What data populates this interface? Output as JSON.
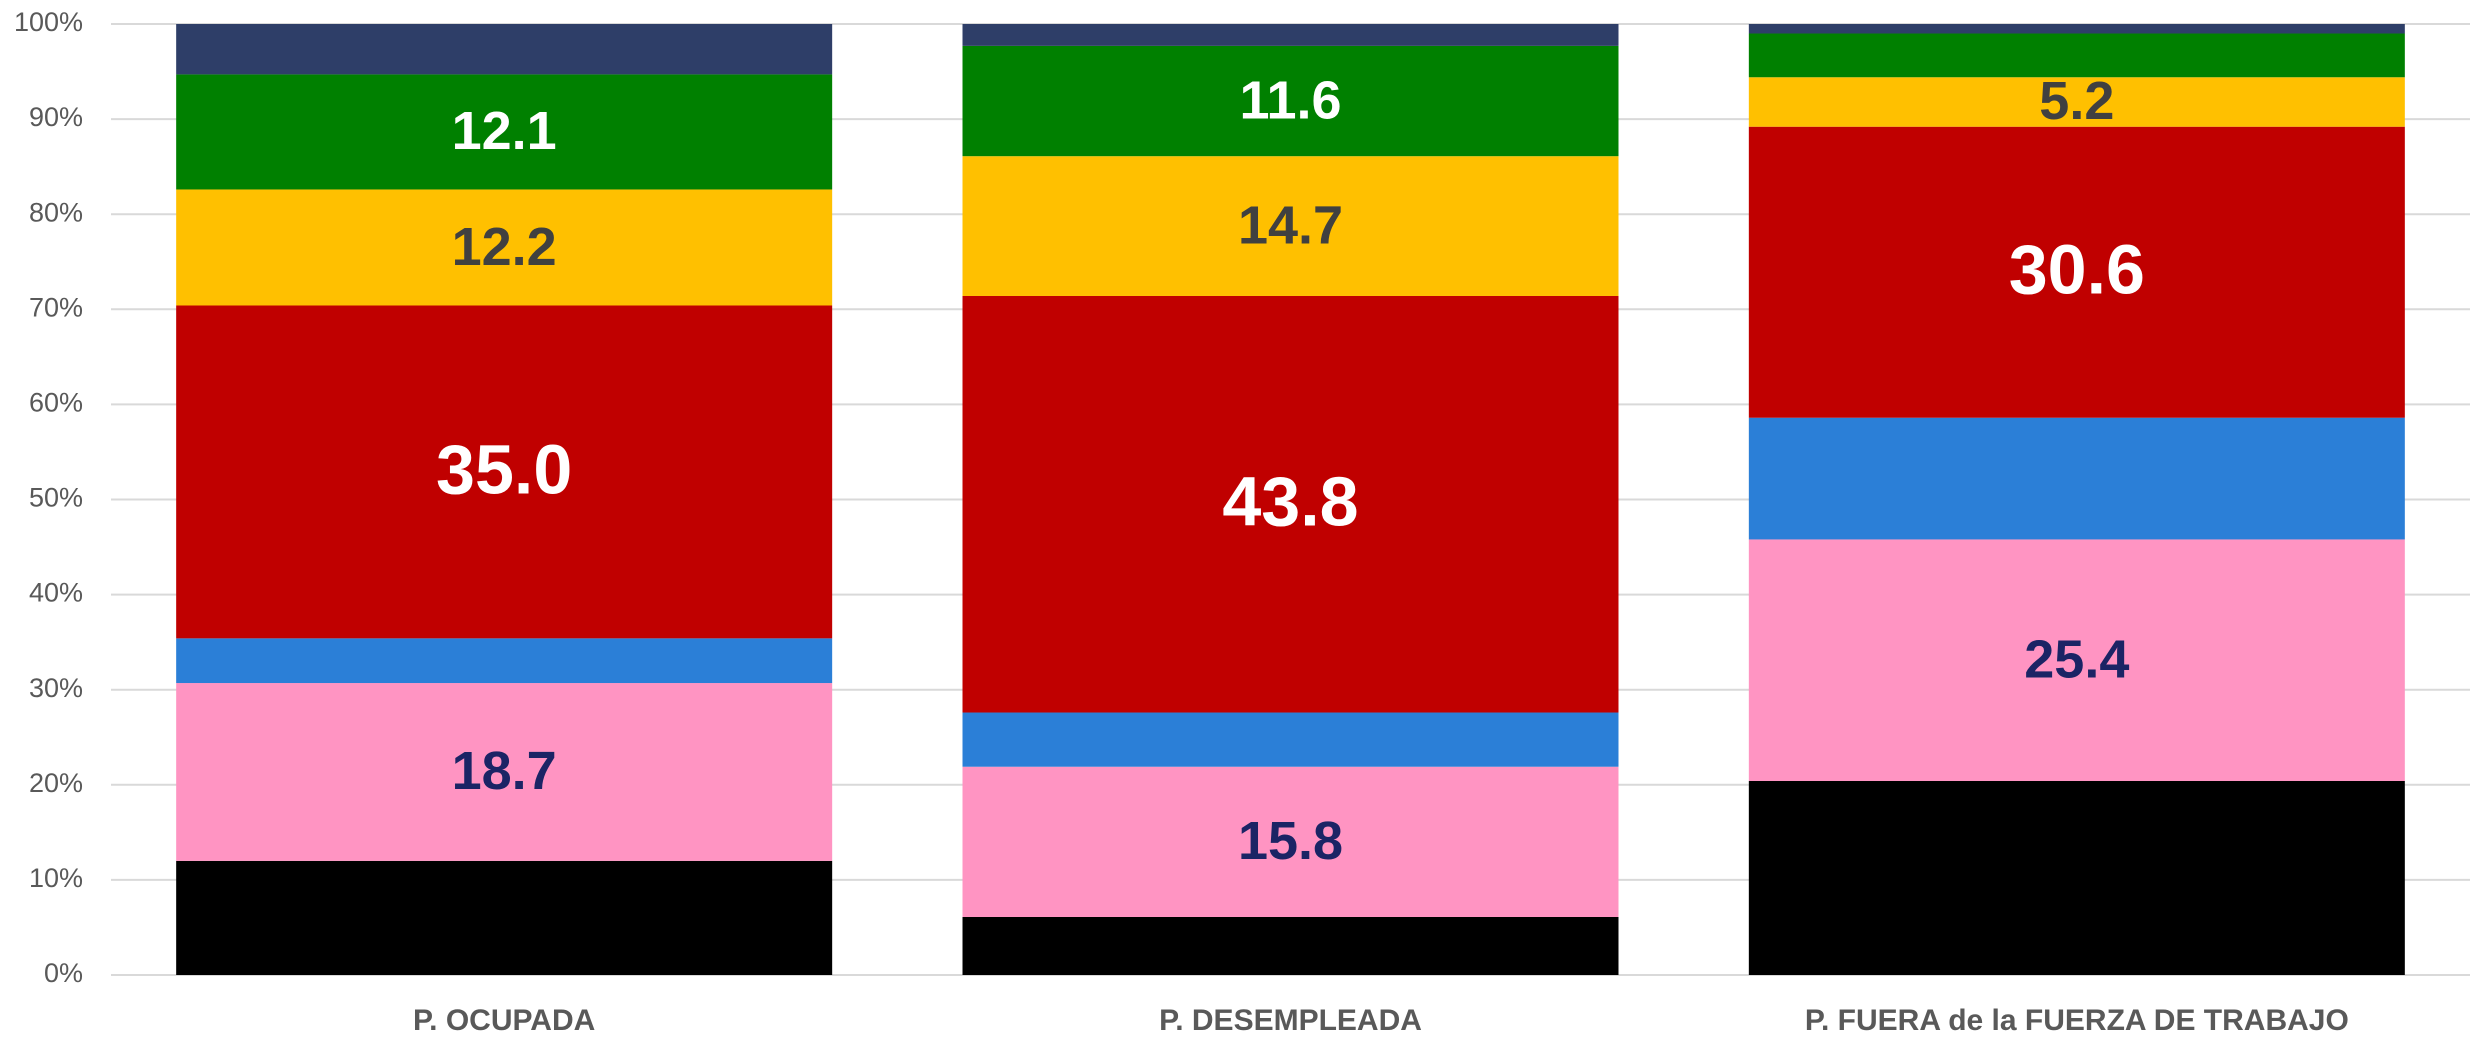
{
  "chart_data": {
    "type": "stacked_bar",
    "categories": [
      "P. OCUPADA",
      "P. DESEMPLEADA",
      "P. FUERA de la FUERZA DE TRABAJO"
    ],
    "series": [
      {
        "color": "#000000",
        "values": [
          12.0,
          6.1,
          20.4
        ]
      },
      {
        "color": "#ff94c2",
        "values": [
          18.7,
          15.8,
          25.4
        ],
        "value_labels": [
          "18.7",
          "15.8",
          "25.4"
        ],
        "label_color": "#1b2465"
      },
      {
        "color": "#2b7fd7",
        "values": [
          4.7,
          5.7,
          12.8
        ]
      },
      {
        "color": "#c00000",
        "values": [
          35.0,
          43.8,
          30.6
        ],
        "value_labels": [
          "35.0",
          "43.8",
          "30.6"
        ],
        "label_color": "#ffffff"
      },
      {
        "color": "#ffc000",
        "values": [
          12.2,
          14.7,
          5.2
        ],
        "value_labels": [
          "12.2",
          "14.7",
          "5.2"
        ],
        "label_color": "#404040"
      },
      {
        "color": "#008000",
        "values": [
          12.1,
          11.6,
          4.6
        ],
        "value_labels": [
          "12.1",
          "11.6",
          null
        ],
        "label_color": "#ffffff"
      },
      {
        "color": "#2e3e68",
        "values": [
          5.3,
          2.3,
          1.0
        ]
      }
    ],
    "ylim": [
      0,
      100
    ],
    "yticks": [
      {
        "value": 0,
        "label": "0%"
      },
      {
        "value": 10,
        "label": "10%"
      },
      {
        "value": 20,
        "label": "20%"
      },
      {
        "value": 30,
        "label": "30%"
      },
      {
        "value": 40,
        "label": "40%"
      },
      {
        "value": 50,
        "label": "50%"
      },
      {
        "value": 60,
        "label": "60%"
      },
      {
        "value": 70,
        "label": "70%"
      },
      {
        "value": 80,
        "label": "80%"
      },
      {
        "value": 90,
        "label": "90%"
      },
      {
        "value": 100,
        "label": "100%"
      }
    ],
    "grid": true
  }
}
